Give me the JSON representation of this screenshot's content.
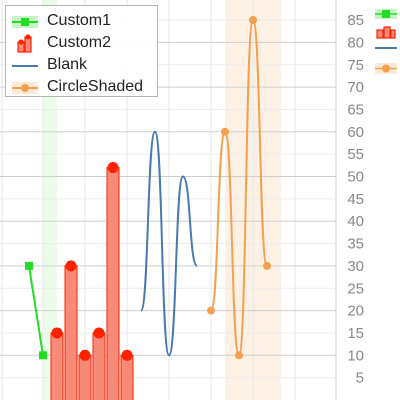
{
  "chart_data": {
    "type": "mixed",
    "y_axis": {
      "position": "right",
      "ticks": [
        "5",
        "10",
        "15",
        "20",
        "25",
        "30",
        "35",
        "40",
        "45",
        "50",
        "55",
        "60",
        "65",
        "70",
        "75",
        "80",
        "85"
      ],
      "ylim": [
        0,
        88
      ]
    },
    "grid": true,
    "legend_placement": "top-left",
    "series": [
      {
        "name": "Custom1",
        "type": "line-markers",
        "color": "#22dd22",
        "shade": "#c8f5c8",
        "marker": "square",
        "points": [
          [
            1,
            30
          ],
          [
            2,
            10
          ]
        ]
      },
      {
        "name": "Custom2",
        "type": "bar",
        "color": "#ff2200",
        "fill": "#f88b78",
        "marker": "circle",
        "points": [
          [
            3,
            15
          ],
          [
            4,
            30
          ],
          [
            5,
            10
          ],
          [
            6,
            15
          ],
          [
            7,
            52
          ],
          [
            8,
            10
          ]
        ]
      },
      {
        "name": "Blank",
        "type": "spline",
        "color": "#4a7ab0",
        "points": [
          [
            9,
            20
          ],
          [
            10,
            60
          ],
          [
            11,
            10
          ],
          [
            12,
            50
          ],
          [
            13,
            30
          ]
        ]
      },
      {
        "name": "CircleShaded",
        "type": "spline-markers",
        "color": "#f5a04e",
        "shade": "#fde9d8",
        "marker": "circle",
        "points": [
          [
            14,
            20
          ],
          [
            15,
            60
          ],
          [
            16,
            10
          ],
          [
            17,
            85
          ],
          [
            18,
            30
          ]
        ]
      }
    ]
  }
}
